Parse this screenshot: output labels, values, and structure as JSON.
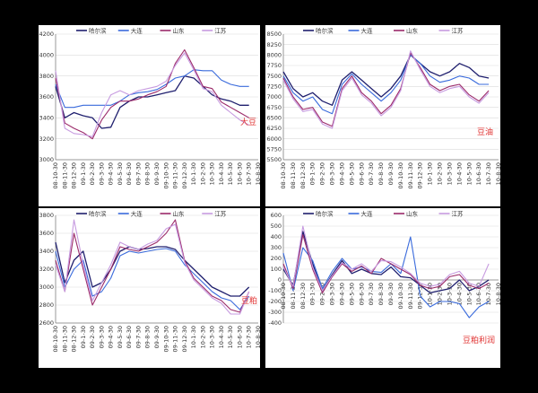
{
  "colors": {
    "hlj": "#1f1f6e",
    "dl": "#3a6bdc",
    "sd": "#9b2a6a",
    "js": "#c79be0",
    "annotation": "#e0302f"
  },
  "chart_data": [
    {
      "type": "line",
      "legend": [
        "哈尔滨",
        "大连",
        "山东",
        "江苏"
      ],
      "legend_position": "top",
      "annotation": "大豆",
      "grid": true,
      "ylim": [
        3000,
        4200
      ],
      "yticks": [
        "3000",
        "3200",
        "3400",
        "3600",
        "3800",
        "4000",
        "4200"
      ],
      "xticks": [
        "08-10-30",
        "08-11-30",
        "08-12-30",
        "09-1-30",
        "09-2-30",
        "09-3-30",
        "09-4-30",
        "09-5-30",
        "09-6-30",
        "09-7-30",
        "09-8-30",
        "09-9-30",
        "09-10-30",
        "09-11-30",
        "09-12-30",
        "10-1-30",
        "10-2-30",
        "10-3-30",
        "10-4-30",
        "10-5-30",
        "10-6-30",
        "10-7-30",
        "10-8-30"
      ],
      "series": [
        {
          "name": "哈尔滨",
          "values": [
            3700,
            3400,
            3450,
            3420,
            3400,
            3300,
            3310,
            3500,
            3560,
            3600,
            3600,
            3620,
            3640,
            3660,
            3800,
            3780,
            3700,
            3620,
            3580,
            3560,
            3520,
            3520,
            null
          ]
        },
        {
          "name": "大连",
          "values": [
            3720,
            3500,
            3500,
            3520,
            3520,
            3520,
            3520,
            3560,
            3620,
            3640,
            3650,
            3670,
            3720,
            3780,
            3800,
            3860,
            3850,
            3850,
            3760,
            3720,
            3700,
            3700,
            null
          ]
        },
        {
          "name": "山东",
          "values": [
            3780,
            3350,
            3300,
            3260,
            3200,
            3380,
            3500,
            3560,
            3560,
            3580,
            3620,
            3650,
            3700,
            3920,
            4050,
            3880,
            3700,
            3680,
            3550,
            3500,
            3450,
            3400,
            null
          ]
        },
        {
          "name": "江苏",
          "values": [
            3850,
            3300,
            3250,
            3240,
            3220,
            3450,
            3620,
            3660,
            3620,
            3660,
            3680,
            3700,
            3750,
            3900,
            4020,
            3860,
            3680,
            3650,
            3520,
            3450,
            3380,
            3330,
            null
          ]
        }
      ]
    },
    {
      "type": "line",
      "legend": [
        "哈尔滨",
        "大连",
        "山东",
        "江苏"
      ],
      "legend_position": "top",
      "annotation": "豆油",
      "grid": true,
      "ylim": [
        5500,
        8500
      ],
      "yticks": [
        "5500",
        "5750",
        "6000",
        "6250",
        "6500",
        "6750",
        "7000",
        "7250",
        "7500",
        "7750",
        "8000",
        "8250",
        "8500"
      ],
      "xticks": [
        "08-10-30",
        "08-11-30",
        "08-12-30",
        "09-1-30",
        "09-2-30",
        "09-3-30",
        "09-4-30",
        "09-5-30",
        "09-6-30",
        "09-7-30",
        "09-8-30",
        "09-9-30",
        "09-10-30",
        "09-11-30",
        "09-12-30",
        "10-1-30",
        "10-2-30",
        "10-3-30",
        "10-4-30",
        "10-5-30",
        "10-6-30",
        "10-7-30",
        "10-8-30"
      ],
      "series": [
        {
          "name": "哈尔滨",
          "values": [
            7600,
            7200,
            7000,
            7100,
            6900,
            6800,
            7400,
            7600,
            7400,
            7200,
            7000,
            7200,
            7500,
            8000,
            7800,
            7600,
            7500,
            7600,
            7800,
            7700,
            7500,
            7450,
            null
          ]
        },
        {
          "name": "大连",
          "values": [
            7500,
            7100,
            6900,
            7000,
            6700,
            6600,
            7300,
            7550,
            7300,
            7100,
            6900,
            7100,
            7400,
            8000,
            7800,
            7500,
            7350,
            7400,
            7500,
            7450,
            7300,
            7300,
            null
          ]
        },
        {
          "name": "山东",
          "values": [
            7450,
            7000,
            6700,
            6750,
            6400,
            6300,
            7200,
            7500,
            7100,
            6900,
            6600,
            6800,
            7200,
            8050,
            7700,
            7300,
            7150,
            7250,
            7300,
            7050,
            6900,
            7150,
            null
          ]
        },
        {
          "name": "江苏",
          "values": [
            7400,
            6950,
            6650,
            6700,
            6350,
            6250,
            7150,
            7450,
            7050,
            6850,
            6550,
            6750,
            7150,
            8100,
            7650,
            7250,
            7100,
            7200,
            7250,
            7000,
            6850,
            7100,
            null
          ]
        }
      ]
    },
    {
      "type": "line",
      "legend": [
        "哈尔滨",
        "大连",
        "山东",
        "江苏"
      ],
      "legend_position": "top",
      "annotation": "豆粕",
      "grid": true,
      "ylim": [
        2600,
        3800
      ],
      "yticks": [
        "2600",
        "2800",
        "3000",
        "3200",
        "3400",
        "3600",
        "3800"
      ],
      "xticks": [
        "08-10-30",
        "08-11-30",
        "08-12-30",
        "09-1-30",
        "09-2-30",
        "09-3-30",
        "09-4-30",
        "09-5-30",
        "09-6-30",
        "09-7-30",
        "09-8-30",
        "09-9-30",
        "09-10-30",
        "09-11-30",
        "09-12-30",
        "10-1-30",
        "10-2-30",
        "10-3-30",
        "10-4-30",
        "10-5-30",
        "10-6-30",
        "10-7-30",
        "10-8-30"
      ],
      "series": [
        {
          "name": "哈尔滨",
          "values": [
            3500,
            3050,
            3300,
            3400,
            3000,
            3050,
            3200,
            3400,
            3450,
            3420,
            3430,
            3450,
            3450,
            3420,
            3300,
            3200,
            3100,
            3000,
            2950,
            2900,
            2900,
            3000,
            null
          ]
        },
        {
          "name": "大连",
          "values": [
            3400,
            3000,
            3200,
            3300,
            2900,
            2950,
            3100,
            3350,
            3400,
            3380,
            3400,
            3420,
            3430,
            3400,
            3250,
            3150,
            3050,
            2950,
            2880,
            2850,
            2750,
            2900,
            null
          ]
        },
        {
          "name": "山东",
          "values": [
            3300,
            2950,
            3600,
            3200,
            2800,
            3000,
            3200,
            3450,
            3420,
            3400,
            3450,
            3500,
            3600,
            3750,
            3300,
            3100,
            3000,
            2900,
            2850,
            2750,
            2720,
            2950,
            null
          ]
        },
        {
          "name": "江苏",
          "values": [
            3250,
            2950,
            3750,
            3250,
            2850,
            3050,
            3250,
            3500,
            3450,
            3420,
            3480,
            3520,
            3650,
            3700,
            3280,
            3080,
            2980,
            2880,
            2820,
            2700,
            2700,
            2950,
            null
          ]
        }
      ]
    },
    {
      "type": "line",
      "legend": [
        "哈尔滨",
        "大连",
        "山东",
        "江苏"
      ],
      "legend_position": "top",
      "annotation": "豆粕利润",
      "grid": true,
      "ylim": [
        -400,
        600
      ],
      "yticks": [
        "-400",
        "-300",
        "-200",
        "-100",
        "0",
        "100",
        "200",
        "300",
        "400",
        "500",
        "600"
      ],
      "xticks": [
        "08-10-30",
        "08-11-30",
        "08-12-30",
        "09-1-30",
        "09-2-30",
        "09-3-30",
        "09-4-30",
        "09-5-30",
        "09-6-30",
        "09-7-30",
        "09-8-30",
        "09-9-30",
        "09-10-30",
        "09-11-30",
        "09-12-30",
        "10-1-30",
        "10-2-30",
        "10-3-30",
        "10-4-30",
        "10-5-30",
        "10-6-30",
        "10-7-30",
        "10-8-30"
      ],
      "series": [
        {
          "name": "哈尔滨",
          "values": [
            100,
            -50,
            450,
            150,
            -100,
            50,
            180,
            60,
            100,
            60,
            50,
            120,
            30,
            20,
            -50,
            -120,
            -100,
            -80,
            0,
            -100,
            -60,
            0,
            null
          ]
        },
        {
          "name": "大连",
          "values": [
            250,
            -100,
            300,
            180,
            -80,
            80,
            200,
            100,
            120,
            80,
            70,
            150,
            60,
            400,
            -150,
            -250,
            -200,
            -200,
            -220,
            -350,
            -250,
            -200,
            null
          ]
        },
        {
          "name": "山东",
          "values": [
            150,
            -80,
            420,
            100,
            -120,
            30,
            150,
            80,
            130,
            60,
            200,
            150,
            100,
            50,
            -50,
            -80,
            -60,
            30,
            50,
            -50,
            -80,
            -30,
            null
          ]
        },
        {
          "name": "江苏",
          "values": [
            120,
            -60,
            500,
            120,
            -100,
            40,
            160,
            100,
            150,
            80,
            180,
            170,
            120,
            60,
            -30,
            -60,
            -40,
            50,
            80,
            -30,
            -60,
            150,
            null
          ]
        }
      ]
    }
  ]
}
